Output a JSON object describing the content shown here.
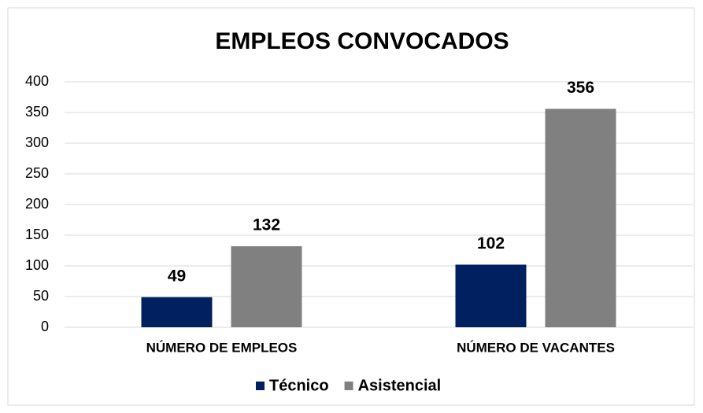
{
  "chart_data": {
    "type": "bar",
    "title": "EMPLEOS CONVOCADOS",
    "categories": [
      "NÚMERO DE EMPLEOS",
      "NÚMERO DE VACANTES"
    ],
    "series": [
      {
        "name": "Técnico",
        "color": "#002060",
        "values": [
          49,
          102
        ]
      },
      {
        "name": "Asistencial",
        "color": "#808080",
        "values": [
          132,
          356
        ]
      }
    ],
    "ylim": [
      0,
      400
    ],
    "yticks": [
      0,
      50,
      100,
      150,
      200,
      250,
      300,
      350,
      400
    ],
    "grid": true,
    "legend": "bottom"
  }
}
